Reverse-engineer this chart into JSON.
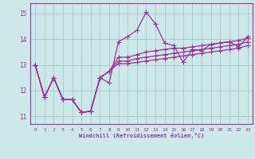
{
  "xlabel": "Windchill (Refroidissement éolien,°C)",
  "background_color": "#cce8e8",
  "grid_color": "#aacccc",
  "line_color": "#993399",
  "xlim": [
    -0.5,
    23.5
  ],
  "ylim": [
    10.7,
    15.4
  ],
  "yticks": [
    11,
    12,
    13,
    14,
    15
  ],
  "xticks": [
    0,
    1,
    2,
    3,
    4,
    5,
    6,
    7,
    8,
    9,
    10,
    11,
    12,
    13,
    14,
    15,
    16,
    17,
    18,
    19,
    20,
    21,
    22,
    23
  ],
  "series": [
    [
      13.0,
      11.75,
      12.5,
      11.65,
      11.65,
      11.15,
      11.2,
      12.5,
      12.3,
      13.9,
      14.1,
      14.35,
      15.05,
      14.6,
      13.85,
      13.75,
      13.1,
      13.6,
      13.55,
      13.8,
      13.85,
      13.9,
      13.7,
      14.1
    ],
    [
      13.0,
      11.75,
      12.5,
      11.65,
      11.65,
      11.15,
      11.2,
      12.5,
      12.75,
      13.3,
      13.3,
      13.4,
      13.5,
      13.55,
      13.6,
      13.65,
      13.65,
      13.7,
      13.75,
      13.8,
      13.85,
      13.9,
      13.95,
      14.05
    ],
    [
      13.0,
      11.75,
      12.5,
      11.65,
      11.65,
      11.15,
      11.2,
      12.5,
      12.75,
      13.15,
      13.15,
      13.25,
      13.3,
      13.35,
      13.4,
      13.45,
      13.5,
      13.55,
      13.6,
      13.65,
      13.7,
      13.75,
      13.8,
      13.9
    ],
    [
      13.0,
      11.75,
      12.5,
      11.65,
      11.65,
      11.15,
      11.2,
      12.5,
      12.75,
      13.05,
      13.05,
      13.1,
      13.15,
      13.2,
      13.25,
      13.3,
      13.35,
      13.4,
      13.45,
      13.5,
      13.55,
      13.6,
      13.65,
      13.75
    ]
  ]
}
